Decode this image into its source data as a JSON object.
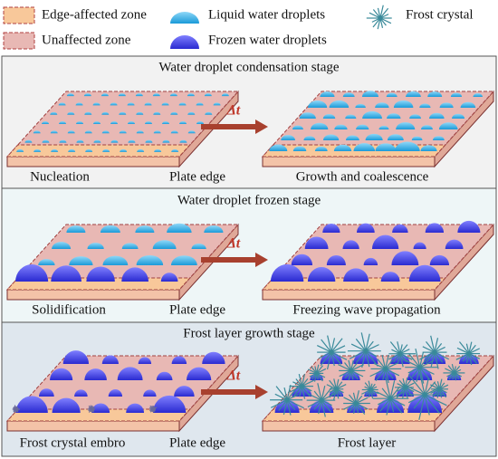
{
  "legend": [
    "Edge-affected zone",
    "Unaffected zone",
    "Liquid water droplets",
    "Frozen water droplets",
    "Frost crystal"
  ],
  "panels": [
    {
      "title": "Water droplet condensation stage",
      "delta": "Δt",
      "captions": [
        "Nucleation",
        "Plate edge",
        "Growth and coalescence"
      ]
    },
    {
      "title": "Water droplet frozen stage",
      "delta": "Δt",
      "captions": [
        "Solidification",
        "Plate edge",
        "Freezing wave propagation"
      ]
    },
    {
      "title": "Frost layer growth stage",
      "delta": "Δt",
      "captions": [
        "Frost crystal embro",
        "Plate edge",
        "Frost layer"
      ]
    }
  ]
}
